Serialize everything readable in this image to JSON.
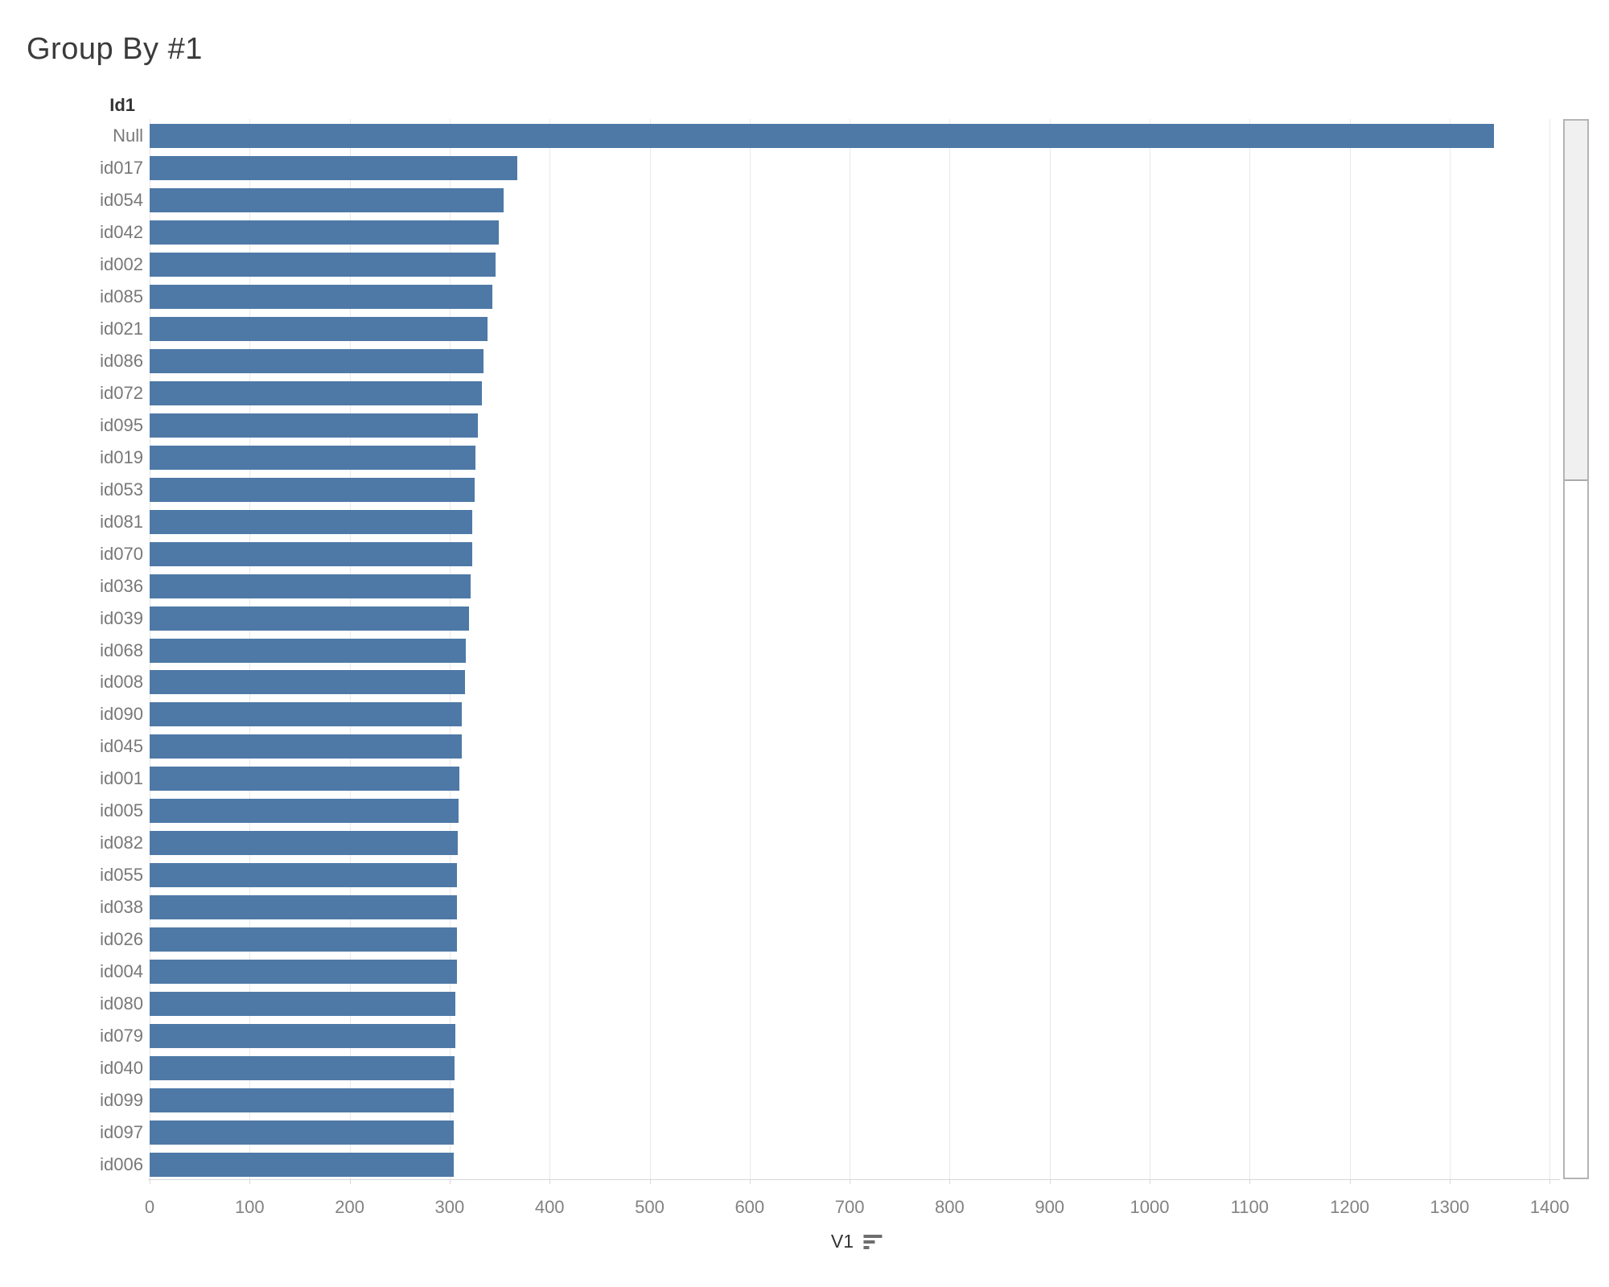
{
  "page": {
    "title": "Group By #1"
  },
  "colors": {
    "bar": "#4e79a7",
    "gridline": "#e9e9e9",
    "axis_text": "#828282",
    "label_text": "#787878",
    "title_text": "#3b3b3b"
  },
  "chart_data": {
    "type": "bar",
    "orientation": "horizontal",
    "title": "Group By #1",
    "column_header": "Id1",
    "xlabel": "V1",
    "sort": "descending",
    "grid": true,
    "xlim": [
      0,
      1410
    ],
    "xticks": [
      0,
      100,
      200,
      300,
      400,
      500,
      600,
      700,
      800,
      900,
      1000,
      1100,
      1200,
      1300,
      1400
    ],
    "categories": [
      "Null",
      "id017",
      "id054",
      "id042",
      "id002",
      "id085",
      "id021",
      "id086",
      "id072",
      "id095",
      "id019",
      "id053",
      "id081",
      "id070",
      "id036",
      "id039",
      "id068",
      "id008",
      "id090",
      "id045",
      "id001",
      "id005",
      "id082",
      "id055",
      "id038",
      "id026",
      "id004",
      "id080",
      "id079",
      "id040",
      "id099",
      "id097",
      "id006"
    ],
    "values": [
      1344,
      368,
      354,
      349,
      346,
      343,
      338,
      334,
      332,
      328,
      326,
      325,
      323,
      323,
      321,
      319,
      316,
      315,
      312,
      312,
      310,
      309,
      308,
      307,
      307,
      307,
      307,
      306,
      306,
      305,
      304,
      304,
      304
    ],
    "scrollbar": {
      "thumb_fraction": 0.34,
      "thumb_position": "top"
    }
  }
}
